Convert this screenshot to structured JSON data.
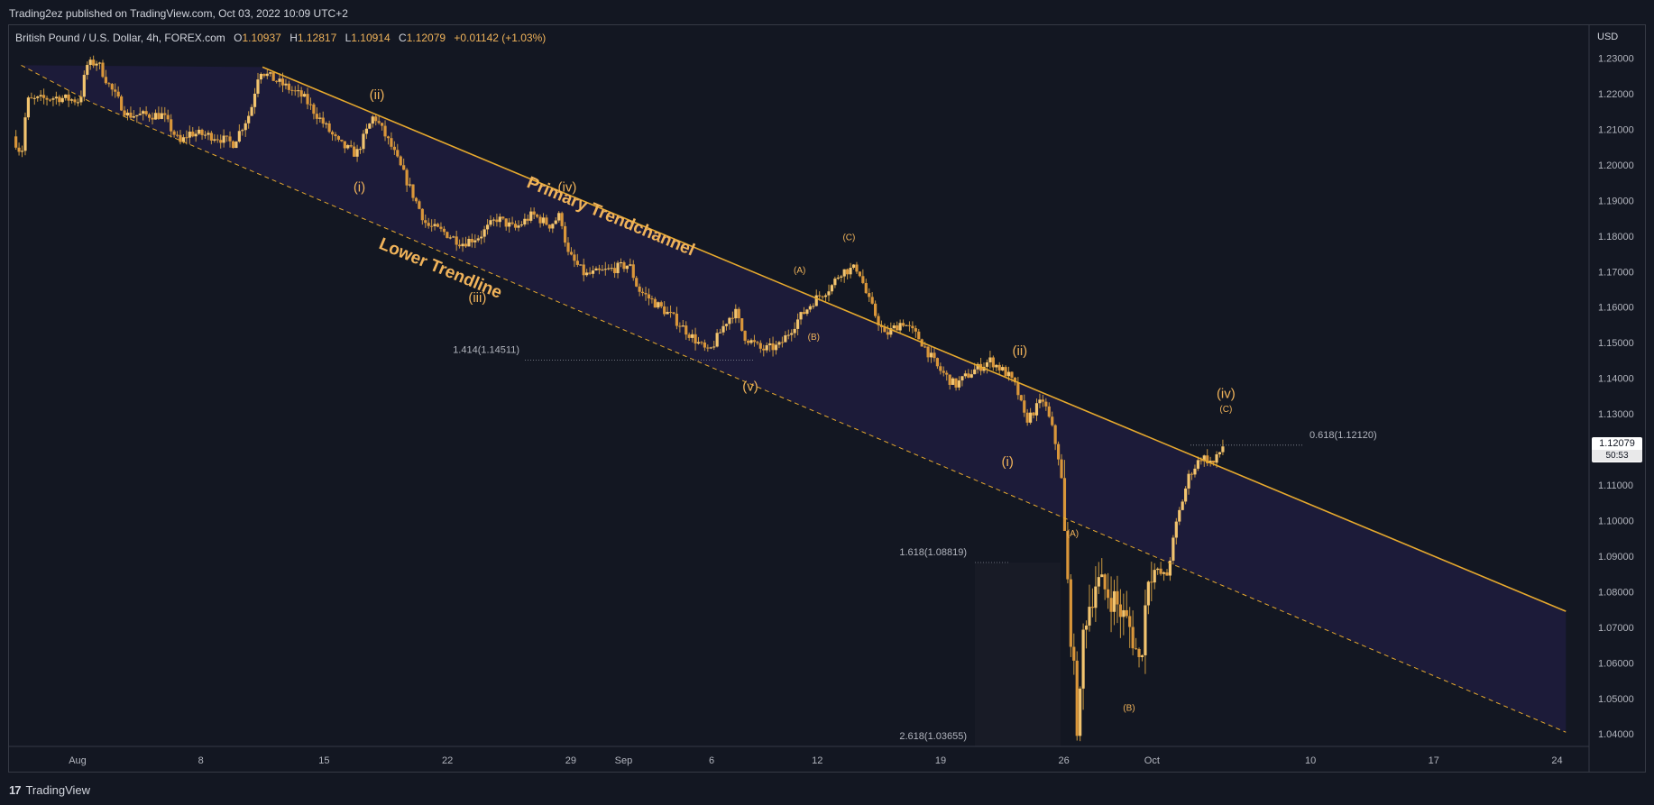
{
  "header": {
    "published": "Trading2ez published on TradingView.com, Oct 03, 2022 10:09 UTC+2"
  },
  "legend": {
    "symbol": "British Pound / U.S. Dollar, 4h, FOREX.com",
    "o_label": "O",
    "o": "1.10937",
    "h_label": "H",
    "h": "1.12817",
    "l_label": "L",
    "l": "1.10914",
    "c_label": "C",
    "c": "1.12079",
    "change": "+0.01142 (+1.03%)"
  },
  "price_tag": {
    "price": "1.12079",
    "countdown": "50:53"
  },
  "footer": {
    "brand": "TradingView"
  },
  "colors": {
    "bg": "#131722",
    "accent": "#f0b35a",
    "line": "#e6a92e",
    "channel": "#1f1c3d"
  },
  "chart_data": {
    "type": "candlestick",
    "title": "British Pound / U.S. Dollar, 4h, FOREX.com",
    "currency": "USD",
    "ylim": [
      1.033,
      1.238
    ],
    "y_ticks": [
      "1.23000",
      "1.22000",
      "1.21000",
      "1.20000",
      "1.19000",
      "1.18000",
      "1.17000",
      "1.16000",
      "1.15000",
      "1.14000",
      "1.13000",
      "1.12000",
      "1.11000",
      "1.10000",
      "1.09000",
      "1.08000",
      "1.07000",
      "1.06000",
      "1.05000",
      "1.04000"
    ],
    "x_ticks": [
      {
        "label": "Aug",
        "day": 0
      },
      {
        "label": "8",
        "day": 7
      },
      {
        "label": "15",
        "day": 14
      },
      {
        "label": "22",
        "day": 21
      },
      {
        "label": "29",
        "day": 28
      },
      {
        "label": "Sep",
        "day": 31
      },
      {
        "label": "6",
        "day": 36
      },
      {
        "label": "12",
        "day": 42
      },
      {
        "label": "19",
        "day": 49
      },
      {
        "label": "26",
        "day": 56
      },
      {
        "label": "Oct",
        "day": 61
      },
      {
        "label": "10",
        "day": 70
      },
      {
        "label": "17",
        "day": 77
      },
      {
        "label": "24",
        "day": 84
      }
    ],
    "path": [
      [
        -3.5,
        1.208
      ],
      [
        -3.0,
        1.203
      ],
      [
        -2.7,
        1.218
      ],
      [
        -1.0,
        1.219
      ],
      [
        0.3,
        1.218
      ],
      [
        0.7,
        1.228
      ],
      [
        1.3,
        1.229
      ],
      [
        2.0,
        1.222
      ],
      [
        3.0,
        1.214
      ],
      [
        5.0,
        1.214
      ],
      [
        6.0,
        1.206
      ],
      [
        6.5,
        1.209
      ],
      [
        8.0,
        1.208
      ],
      [
        9.0,
        1.206
      ],
      [
        10.0,
        1.215
      ],
      [
        10.5,
        1.227
      ],
      [
        11.0,
        1.225
      ],
      [
        13.0,
        1.219
      ],
      [
        15.0,
        1.206
      ],
      [
        16.0,
        1.203
      ],
      [
        17.0,
        1.214
      ],
      [
        18.0,
        1.205
      ],
      [
        19.0,
        1.194
      ],
      [
        20.0,
        1.183
      ],
      [
        21.0,
        1.181
      ],
      [
        22.0,
        1.178
      ],
      [
        23.0,
        1.18
      ],
      [
        24.0,
        1.185
      ],
      [
        25.0,
        1.182
      ],
      [
        26.0,
        1.186
      ],
      [
        27.0,
        1.183
      ],
      [
        27.6,
        1.186
      ],
      [
        28.0,
        1.175
      ],
      [
        29.0,
        1.169
      ],
      [
        30.0,
        1.17
      ],
      [
        31.5,
        1.172
      ],
      [
        32.0,
        1.165
      ],
      [
        34.0,
        1.157
      ],
      [
        35.0,
        1.152
      ],
      [
        36.0,
        1.147
      ],
      [
        37.0,
        1.156
      ],
      [
        37.5,
        1.159
      ],
      [
        38.0,
        1.152
      ],
      [
        39.0,
        1.148
      ],
      [
        40.0,
        1.149
      ],
      [
        41.0,
        1.156
      ],
      [
        42.0,
        1.162
      ],
      [
        43.0,
        1.166
      ],
      [
        43.5,
        1.17
      ],
      [
        44.5,
        1.171
      ],
      [
        45.0,
        1.163
      ],
      [
        46.0,
        1.152
      ],
      [
        47.0,
        1.156
      ],
      [
        48.0,
        1.151
      ],
      [
        49.0,
        1.143
      ],
      [
        50.0,
        1.138
      ],
      [
        51.0,
        1.142
      ],
      [
        52.0,
        1.145
      ],
      [
        53.0,
        1.141
      ],
      [
        53.5,
        1.137
      ],
      [
        54.0,
        1.128
      ],
      [
        55.0,
        1.134
      ],
      [
        55.5,
        1.126
      ],
      [
        56.0,
        1.115
      ],
      [
        56.3,
        1.088
      ],
      [
        57.0,
        1.038
      ],
      [
        57.3,
        1.071
      ],
      [
        58.0,
        1.083
      ],
      [
        59.0,
        1.078
      ],
      [
        60.0,
        1.069
      ],
      [
        60.5,
        1.059
      ],
      [
        61.0,
        1.087
      ],
      [
        62.0,
        1.084
      ],
      [
        62.6,
        1.1
      ],
      [
        63.3,
        1.113
      ],
      [
        64.0,
        1.118
      ],
      [
        64.7,
        1.116
      ],
      [
        65.2,
        1.121
      ]
    ],
    "channel": {
      "primary_trendchannel": [
        [
          10.5,
          1.2275
        ],
        [
          84.5,
          1.0745
        ]
      ],
      "lower_trendline": [
        [
          -3.2,
          1.228
        ],
        [
          0.8,
          1.2175
        ],
        [
          84.5,
          1.0405
        ]
      ]
    },
    "fib_levels": [
      {
        "label": "1.414(1.14511)",
        "value": 1.14511
      },
      {
        "label": "1.618(1.08819)",
        "value": 1.08819
      },
      {
        "label": "2.618(1.03655)",
        "value": 1.03655
      },
      {
        "label": "0.618(1.12120)",
        "value": 1.1212
      }
    ],
    "annotations": [
      {
        "text": "(ii)",
        "day": 17,
        "price": 1.2185
      },
      {
        "text": "(i)",
        "day": 16,
        "price": 1.1925
      },
      {
        "text": "(iv)",
        "day": 27.8,
        "price": 1.1925
      },
      {
        "text": "(iii)",
        "day": 22.7,
        "price": 1.1615
      },
      {
        "text": "(v)",
        "day": 38.2,
        "price": 1.1365
      },
      {
        "text": "(A)",
        "day": 41,
        "price": 1.1695
      },
      {
        "text": "(B)",
        "day": 41.8,
        "price": 1.1508
      },
      {
        "text": "(C)",
        "day": 43.8,
        "price": 1.1788
      },
      {
        "text": "(ii)",
        "day": 53.5,
        "price": 1.1465
      },
      {
        "text": "(i)",
        "day": 52.8,
        "price": 1.1153
      },
      {
        "text": "(A)",
        "day": 56.5,
        "price": 1.0955
      },
      {
        "text": "(B)",
        "day": 59.7,
        "price": 1.0465
      },
      {
        "text": "(iv)",
        "day": 65.2,
        "price": 1.1345
      },
      {
        "text": "(C)",
        "day": 65.2,
        "price": 1.1305
      }
    ],
    "channel_labels": [
      "Primary Trendchannel",
      "Lower Trendline"
    ]
  }
}
